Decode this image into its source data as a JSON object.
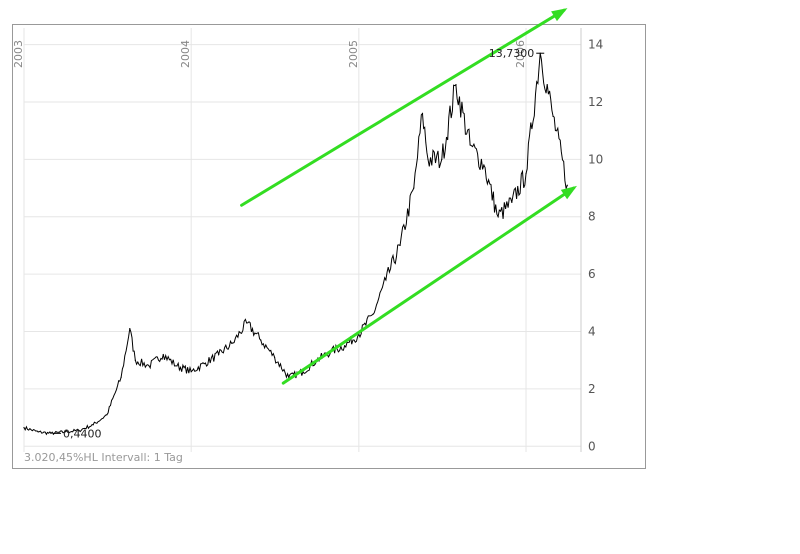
{
  "chart_data": {
    "type": "line",
    "title": "",
    "xlabel": "",
    "ylabel": "",
    "x_tick_labels": [
      "2003",
      "2004",
      "2005",
      "2006"
    ],
    "y_ticks": [
      0,
      2,
      4,
      6,
      8,
      10,
      12,
      14
    ],
    "y_tick_labels": [
      "0",
      "2",
      "4",
      "6",
      "8",
      "10",
      "12",
      "14"
    ],
    "ylim": [
      -0.2,
      14.3
    ],
    "xlim": [
      "2003-01-01",
      "2006-05-01"
    ],
    "grid": true,
    "legend": "none",
    "annotations": {
      "max_label": "13,7300",
      "min_label": "0,4400"
    },
    "footer_text": "3.020,45%HL Intervall: 1 Tag",
    "series": [
      {
        "color": "#000000",
        "x": [
          "2003-01-01",
          "2003-02-01",
          "2003-03-01",
          "2003-04-01",
          "2003-05-01",
          "2003-06-01",
          "2003-07-01",
          "2003-08-01",
          "2003-08-20",
          "2003-09-01",
          "2003-10-01",
          "2003-11-01",
          "2003-12-01",
          "2004-01-01",
          "2004-02-01",
          "2004-03-01",
          "2004-04-01",
          "2004-05-01",
          "2004-06-01",
          "2004-07-01",
          "2004-08-01",
          "2004-09-01",
          "2004-10-01",
          "2004-11-01",
          "2004-12-01",
          "2005-01-01",
          "2005-02-01",
          "2005-03-01",
          "2005-04-01",
          "2005-05-01",
          "2005-05-20",
          "2005-06-01",
          "2005-07-01",
          "2005-08-01",
          "2005-09-01",
          "2005-10-01",
          "2005-11-01",
          "2005-12-01",
          "2006-01-01",
          "2006-02-01",
          "2006-03-01",
          "2006-04-01"
        ],
        "y": [
          0.65,
          0.5,
          0.45,
          0.5,
          0.55,
          0.75,
          1.1,
          2.4,
          4.1,
          3.0,
          2.8,
          3.2,
          2.8,
          2.6,
          2.9,
          3.2,
          3.6,
          4.3,
          3.7,
          3.1,
          2.4,
          2.6,
          3.0,
          3.3,
          3.5,
          3.9,
          4.6,
          5.8,
          7.0,
          9.0,
          11.6,
          10.0,
          10.0,
          12.6,
          10.5,
          9.8,
          8.0,
          8.5,
          9.5,
          13.7,
          11.5,
          9.1
        ]
      },
      {
        "name": "",
        "color": "#33dd22",
        "role": "upper trendline",
        "x": [
          "2004-04-20",
          "2006-03-25"
        ],
        "y": [
          8.4,
          15.2
        ]
      },
      {
        "name": "",
        "color": "#33dd22",
        "role": "lower trendline",
        "x": [
          "2004-07-20",
          "2006-04-15"
        ],
        "y": [
          2.2,
          9.0
        ]
      }
    ]
  }
}
